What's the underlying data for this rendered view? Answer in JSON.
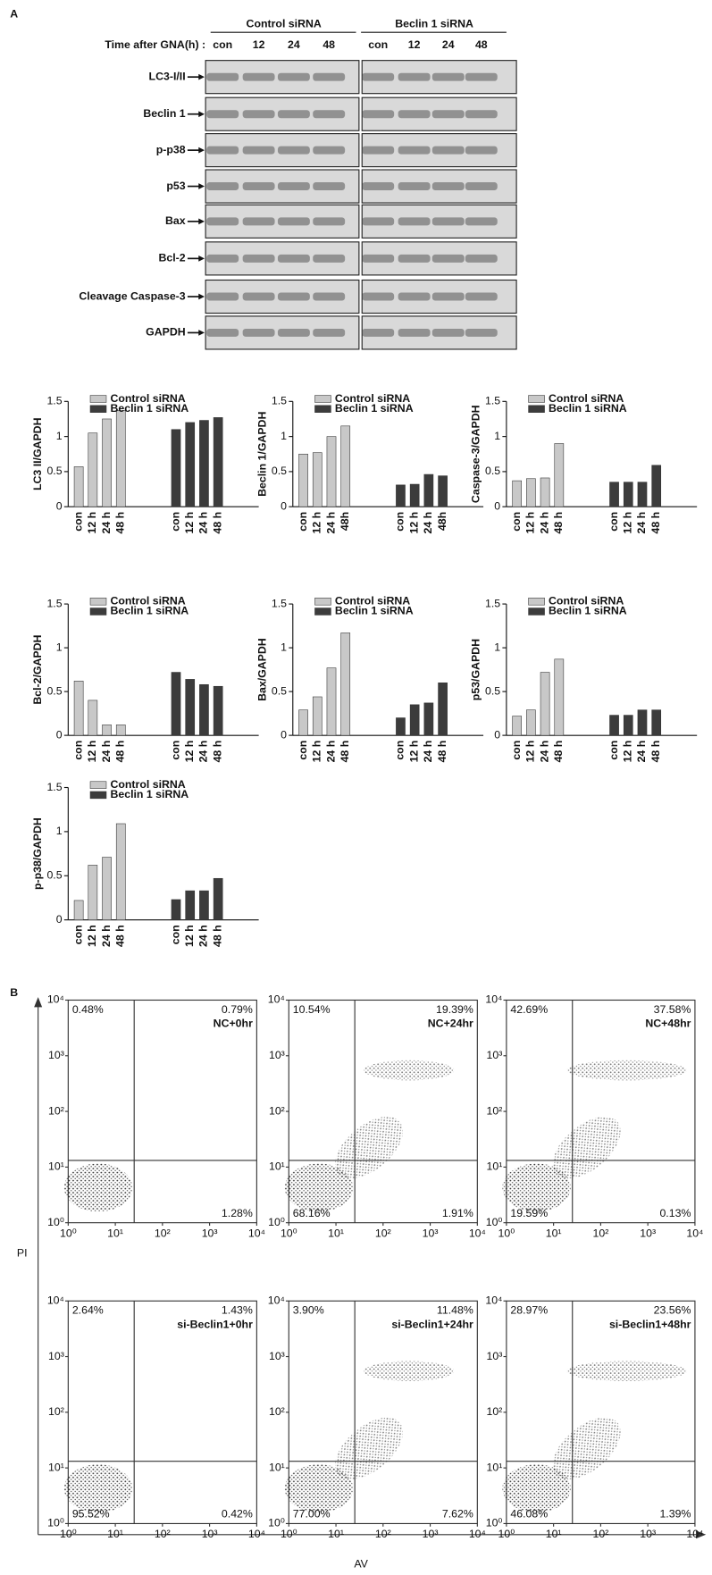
{
  "panel_a": {
    "label": "A",
    "groups": [
      "Control siRNA",
      "Beclin 1 siRNA"
    ],
    "time_label": "Time after GNA(h) :",
    "lanes": [
      "con",
      "12",
      "24",
      "48"
    ],
    "blots": [
      "LC3-I/II",
      "Beclin 1",
      "p-p38",
      "p53",
      "Bax",
      "Bcl-2",
      "Cleavage Caspase-3",
      "GAPDH"
    ]
  },
  "chart_data": [
    {
      "type": "bar",
      "y_label": "LC3 II/GAPDH",
      "categories": [
        "con",
        "12 h",
        "24 h",
        "48 h"
      ],
      "series": [
        {
          "name": "Control siRNA",
          "color": "#c8c8c8",
          "values": [
            0.57,
            1.05,
            1.25,
            1.37
          ]
        },
        {
          "name": "Beclin 1 siRNA",
          "color": "#3c3c3c",
          "values": [
            1.1,
            1.2,
            1.23,
            1.27
          ]
        }
      ],
      "ylim": [
        0,
        1.5
      ],
      "yticks": [
        0,
        0.5,
        1,
        1.5
      ]
    },
    {
      "type": "bar",
      "y_label": "Beclin 1/GAPDH",
      "categories": [
        "con",
        "12 h",
        "24 h",
        "48h"
      ],
      "series": [
        {
          "name": "Control siRNA",
          "color": "#c8c8c8",
          "values": [
            0.75,
            0.77,
            1.0,
            1.15
          ]
        },
        {
          "name": "Beclin 1 siRNA",
          "color": "#3c3c3c",
          "values": [
            0.31,
            0.32,
            0.46,
            0.44
          ]
        }
      ],
      "ylim": [
        0,
        1.5
      ],
      "yticks": [
        0,
        0.5,
        1,
        1.5
      ]
    },
    {
      "type": "bar",
      "y_label": "Caspase-3/GAPDH",
      "categories": [
        "con",
        "12 h",
        "24 h",
        "48 h"
      ],
      "series": [
        {
          "name": "Control siRNA",
          "color": "#c8c8c8",
          "values": [
            0.37,
            0.4,
            0.41,
            0.9
          ]
        },
        {
          "name": "Beclin 1 siRNA",
          "color": "#3c3c3c",
          "values": [
            0.35,
            0.35,
            0.35,
            0.59
          ]
        }
      ],
      "ylim": [
        0,
        1.5
      ],
      "yticks": [
        0,
        0.5,
        1,
        1.5
      ]
    },
    {
      "type": "bar",
      "y_label": "Bcl-2/GAPDH",
      "categories": [
        "con",
        "12 h",
        "24 h",
        "48 h"
      ],
      "series": [
        {
          "name": "Control siRNA",
          "color": "#c8c8c8",
          "values": [
            0.62,
            0.4,
            0.12,
            0.12
          ]
        },
        {
          "name": "Beclin 1 siRNA",
          "color": "#3c3c3c",
          "values": [
            0.72,
            0.64,
            0.58,
            0.56
          ]
        }
      ],
      "ylim": [
        0,
        1.5
      ],
      "yticks": [
        0,
        0.5,
        1,
        1.5
      ]
    },
    {
      "type": "bar",
      "y_label": "Bax/GAPDH",
      "categories": [
        "con",
        "12 h",
        "24 h",
        "48 h"
      ],
      "series": [
        {
          "name": "Control siRNA",
          "color": "#c8c8c8",
          "values": [
            0.29,
            0.44,
            0.77,
            1.17
          ]
        },
        {
          "name": "Beclin 1 siRNA",
          "color": "#3c3c3c",
          "values": [
            0.2,
            0.35,
            0.37,
            0.6
          ]
        }
      ],
      "ylim": [
        0,
        1.5
      ],
      "yticks": [
        0,
        0.5,
        1,
        1.5
      ]
    },
    {
      "type": "bar",
      "y_label": "p53/GAPDH",
      "categories": [
        "con",
        "12 h",
        "24 h",
        "48 h"
      ],
      "series": [
        {
          "name": "Control siRNA",
          "color": "#c8c8c8",
          "values": [
            0.22,
            0.29,
            0.72,
            0.87
          ]
        },
        {
          "name": "Beclin 1 siRNA",
          "color": "#3c3c3c",
          "values": [
            0.23,
            0.23,
            0.29,
            0.29
          ]
        }
      ],
      "ylim": [
        0,
        1.5
      ],
      "yticks": [
        0,
        0.5,
        1,
        1.5
      ]
    },
    {
      "type": "bar",
      "y_label": "p-p38/GAPDH",
      "categories": [
        "con",
        "12 h",
        "24 h",
        "48 h"
      ],
      "series": [
        {
          "name": "Control siRNA",
          "color": "#c8c8c8",
          "values": [
            0.22,
            0.62,
            0.71,
            1.09
          ]
        },
        {
          "name": "Beclin 1 siRNA",
          "color": "#3c3c3c",
          "values": [
            0.23,
            0.33,
            0.33,
            0.47
          ]
        }
      ],
      "ylim": [
        0,
        1.5
      ],
      "yticks": [
        0,
        0.5,
        1,
        1.5
      ]
    }
  ],
  "panel_b": {
    "label": "B",
    "y_label": "PI",
    "x_label": "AV",
    "ticks": [
      {
        "value": 1,
        "label": "10⁰"
      },
      {
        "value": 10,
        "label": "10¹"
      },
      {
        "value": 100,
        "label": "10²"
      },
      {
        "value": 1000,
        "label": "10³"
      },
      {
        "value": 10000,
        "label": "10⁴"
      }
    ],
    "plots": [
      {
        "name": "NC+0hr",
        "ul": "0.48%",
        "ur": "0.79%",
        "ll": "",
        "lr": "1.28%"
      },
      {
        "name": "NC+24hr",
        "ul": "10.54%",
        "ur": "19.39%",
        "ll": "68.16%",
        "lr": "1.91%"
      },
      {
        "name": "NC+48hr",
        "ul": "42.69%",
        "ur": "37.58%",
        "ll": "19.59%",
        "lr": "0.13%"
      },
      {
        "name": "si-Beclin1+0hr",
        "ul": "2.64%",
        "ur": "1.43%",
        "ll": "95.52%",
        "lr": "0.42%"
      },
      {
        "name": "si-Beclin1+24hr",
        "ul": "3.90%",
        "ur": "11.48%",
        "ll": "77.00%",
        "lr": "7.62%"
      },
      {
        "name": "si-Beclin1+48hr",
        "ul": "28.97%",
        "ur": "23.56%",
        "ll": "46.08%",
        "lr": "1.39%"
      }
    ]
  }
}
